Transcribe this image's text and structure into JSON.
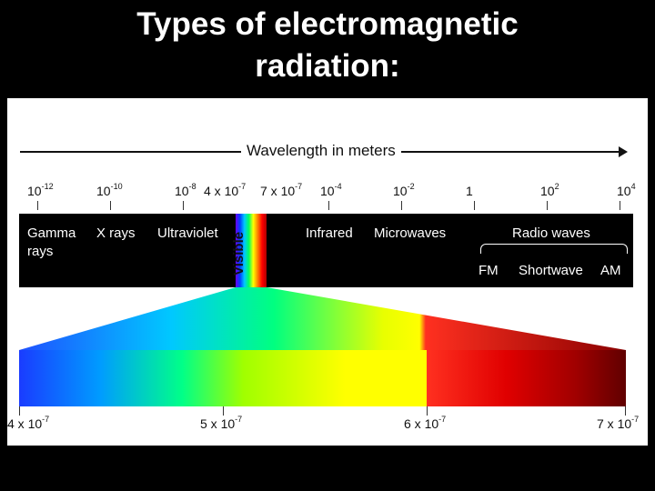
{
  "title": {
    "line1": "Types of electromagnetic",
    "line2": "radiation:"
  },
  "axis": {
    "label": "Wavelength in meters"
  },
  "top_ticks": [
    {
      "base": "10",
      "exp": "-12"
    },
    {
      "base": "10",
      "exp": "-10"
    },
    {
      "base": "10",
      "exp": "-8"
    },
    {
      "base": "4 x 10",
      "exp": "-7"
    },
    {
      "base": "7 x 10",
      "exp": "-7"
    },
    {
      "base": "10",
      "exp": "-4"
    },
    {
      "base": "10",
      "exp": "-2"
    },
    {
      "base": "1",
      "exp": ""
    },
    {
      "base": "10",
      "exp": "2"
    },
    {
      "base": "10",
      "exp": "4"
    }
  ],
  "regions": {
    "gamma_line1": "Gamma",
    "gamma_line2": "rays",
    "xrays": "X rays",
    "ultraviolet": "Ultraviolet",
    "visible": "Visible",
    "infrared": "Infrared",
    "microwaves": "Microwaves",
    "radio": "Radio waves",
    "fm": "FM",
    "shortwave": "Shortwave",
    "am": "AM"
  },
  "bottom_ticks": [
    {
      "base": "4 x 10",
      "exp": "-7"
    },
    {
      "base": "5 x 10",
      "exp": "-7"
    },
    {
      "base": "6 x 10",
      "exp": "-7"
    },
    {
      "base": "7 x 10",
      "exp": "-7"
    }
  ]
}
